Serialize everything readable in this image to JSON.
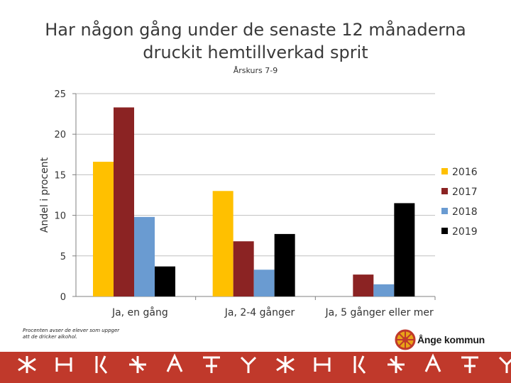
{
  "header": {
    "title_line1": "Har någon gång under de senaste 12 månaderna",
    "title_line2": "druckit hemtillverkad sprit",
    "subtitle": "Årskurs 7-9"
  },
  "footnote": "Procenten avser de elever som uppger att de dricker alkohol.",
  "logo": {
    "name": "Ånge kommun"
  },
  "chart_data": {
    "type": "bar",
    "title": "Har någon gång under de senaste 12 månaderna druckit hemtillverkad sprit",
    "subtitle": "Årskurs 7-9",
    "ylabel": "Andel i procent",
    "xlabel": "",
    "ylim": [
      0,
      25
    ],
    "yticks": [
      0,
      5,
      10,
      15,
      20,
      25
    ],
    "grid": true,
    "legend": "right",
    "categories": [
      "Ja, en gång",
      "Ja, 2-4 gånger",
      "Ja, 5 gånger eller mer"
    ],
    "series": [
      {
        "name": "2016",
        "color": "#FFC000",
        "values": [
          16.6,
          13.0,
          0
        ]
      },
      {
        "name": "2017",
        "color": "#8B2323",
        "values": [
          23.3,
          6.8,
          2.7
        ]
      },
      {
        "name": "2018",
        "color": "#6A9BD1",
        "values": [
          9.8,
          3.3,
          1.5
        ]
      },
      {
        "name": "2019",
        "color": "#000000",
        "values": [
          3.7,
          7.7,
          11.5
        ]
      }
    ]
  }
}
